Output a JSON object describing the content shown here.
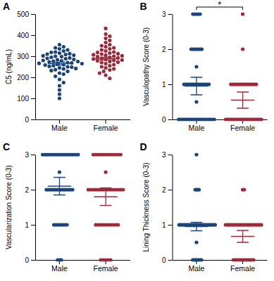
{
  "chart_data": [
    {
      "type": "scatter",
      "title": "A",
      "y_label": "C5 (ng/mL)",
      "categories": [
        "Male",
        "Female"
      ],
      "colors": [
        "#1d4477",
        "#9c2a3a"
      ],
      "values": [
        [
          355,
          345,
          340,
          335,
          330,
          325,
          320,
          318,
          315,
          312,
          310,
          308,
          305,
          302,
          300,
          298,
          295,
          292,
          290,
          288,
          285,
          283,
          280,
          278,
          276,
          275,
          273,
          270,
          268,
          266,
          265,
          262,
          260,
          258,
          255,
          252,
          250,
          248,
          245,
          242,
          240,
          236,
          232,
          228,
          220,
          215,
          205,
          190,
          175,
          160,
          140,
          120,
          100
        ],
        [
          432,
          405,
          395,
          385,
          375,
          365,
          355,
          350,
          345,
          340,
          335,
          330,
          325,
          320,
          318,
          315,
          312,
          310,
          307,
          305,
          302,
          300,
          298,
          295,
          292,
          290,
          287,
          285,
          282,
          280,
          278,
          275,
          272,
          270,
          265,
          260,
          255,
          250,
          245,
          240,
          235,
          228,
          220,
          210,
          195
        ]
      ],
      "mean": [
        265,
        288
      ],
      "error": [
        7,
        7
      ],
      "ylim": [
        0,
        500
      ],
      "yticks": [
        0,
        100,
        200,
        300,
        400,
        500
      ]
    },
    {
      "type": "scatter",
      "title": "B",
      "y_label": "Vasculopathy Score (0-3)",
      "categories": [
        "Male",
        "Female"
      ],
      "colors": [
        "#1d4477",
        "#9c2a3a"
      ],
      "values": [
        [
          3,
          3,
          3,
          3,
          3,
          2,
          2,
          2,
          2,
          2,
          2,
          2,
          1.5,
          1,
          1,
          1,
          1,
          1,
          1,
          1,
          1,
          1,
          1,
          1,
          1,
          1,
          1,
          1,
          0.5,
          0,
          0,
          0,
          0,
          0,
          0,
          0,
          0,
          0,
          0,
          0,
          0,
          0,
          0,
          0,
          0,
          0,
          0,
          0,
          0,
          0
        ],
        [
          3,
          2,
          1,
          1,
          1,
          1,
          1,
          1,
          1,
          1,
          1,
          1,
          1,
          1,
          1,
          1,
          1,
          1,
          0,
          0,
          0,
          0,
          0,
          0,
          0,
          0,
          0,
          0,
          0,
          0,
          0,
          0,
          0,
          0,
          0,
          0,
          0,
          0,
          0,
          0
        ]
      ],
      "mean": [
        0.95,
        0.55
      ],
      "error": [
        0.25,
        0.23
      ],
      "annotations": [
        {
          "text": "*",
          "from": "Male",
          "to": "Female"
        }
      ],
      "ylim": [
        0,
        3
      ],
      "yticks": [
        0,
        1,
        2,
        3
      ]
    },
    {
      "type": "scatter",
      "title": "C",
      "y_label": "Vascularization Score (0-3)",
      "categories": [
        "Male",
        "Female"
      ],
      "colors": [
        "#1d4477",
        "#9c2a3a"
      ],
      "values": [
        [
          3,
          3,
          3,
          3,
          3,
          3,
          3,
          3,
          3,
          3,
          3,
          3,
          3,
          3,
          3,
          3,
          3,
          3,
          3,
          3,
          2.5,
          2,
          2,
          2,
          2,
          2,
          2,
          2,
          2,
          2,
          2,
          2,
          2,
          2,
          2,
          2,
          1,
          1,
          1,
          1,
          1,
          1,
          1,
          1,
          0,
          0,
          0
        ],
        [
          3,
          3,
          3,
          3,
          3,
          3,
          3,
          3,
          3,
          3,
          3,
          3,
          2.5,
          2,
          2,
          2,
          2,
          2,
          2,
          2,
          2,
          2,
          2,
          2,
          2,
          2,
          2,
          2,
          1,
          1,
          1,
          1,
          1,
          1,
          1,
          1,
          1,
          1,
          0,
          0,
          0,
          0,
          0
        ]
      ],
      "mean": [
        2.1,
        1.8
      ],
      "error": [
        0.25,
        0.25
      ],
      "ylim": [
        0,
        3
      ],
      "yticks": [
        0,
        1,
        2,
        3
      ]
    },
    {
      "type": "scatter",
      "title": "D",
      "y_label": "Lining Thickness Score (0-3)",
      "categories": [
        "Male",
        "Female"
      ],
      "colors": [
        "#1d4477",
        "#9c2a3a"
      ],
      "values": [
        [
          3,
          2,
          2,
          2,
          2,
          1,
          1,
          1,
          1,
          1,
          1,
          1,
          1,
          1,
          1,
          1,
          1,
          1,
          1,
          1,
          1,
          1,
          1,
          1,
          1,
          1,
          1,
          1,
          1,
          1,
          1,
          1,
          1,
          1,
          1,
          0.5,
          0,
          0,
          0,
          0,
          0,
          0,
          0,
          0
        ],
        [
          2,
          2,
          1,
          1,
          1,
          1,
          1,
          1,
          1,
          1,
          1,
          1,
          1,
          1,
          1,
          1,
          1,
          1,
          1,
          1,
          1,
          1,
          1,
          1,
          1,
          1,
          0,
          0,
          0,
          0,
          0,
          0,
          0,
          0,
          0,
          0,
          0,
          0,
          0,
          0
        ]
      ],
      "mean": [
        0.95,
        0.67
      ],
      "error": [
        0.12,
        0.17
      ],
      "ylim": [
        0,
        3
      ],
      "yticks": [
        0,
        1,
        2,
        3
      ]
    }
  ]
}
